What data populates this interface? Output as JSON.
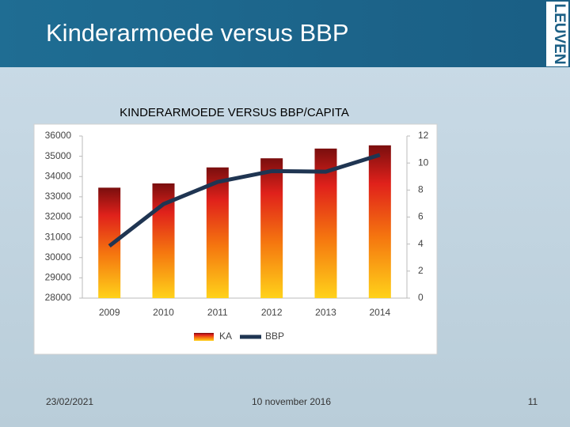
{
  "slide": {
    "title": "Kinderarmoede versus BBP",
    "logo": "LEUVEN",
    "date": "23/02/2021",
    "footer": "10 november 2016",
    "page": "11"
  },
  "chart_data": {
    "type": "bar_line",
    "title": "KINDERARMOEDE VERSUS BBP/CAPITA",
    "categories": [
      "2009",
      "2010",
      "2011",
      "2012",
      "2013",
      "2014"
    ],
    "series": [
      {
        "name": "KA",
        "color": "#d42a16",
        "values": [
          33450,
          33660,
          34450,
          34900,
          35380,
          35540
        ]
      },
      {
        "name": "BBP",
        "color": "#1f3552",
        "axis": "y2",
        "values": [
          3.86,
          6.96,
          8.6,
          9.4,
          9.36,
          10.6
        ]
      }
    ],
    "ylim": [
      28000,
      36000
    ],
    "yticks": [
      28000,
      29000,
      30000,
      31000,
      32000,
      33000,
      34000,
      35000,
      36000
    ],
    "y2lim": [
      0,
      12
    ],
    "y2ticks": [
      0,
      2,
      4,
      6,
      8,
      10,
      12
    ],
    "grid": false,
    "legend": "bottom"
  }
}
